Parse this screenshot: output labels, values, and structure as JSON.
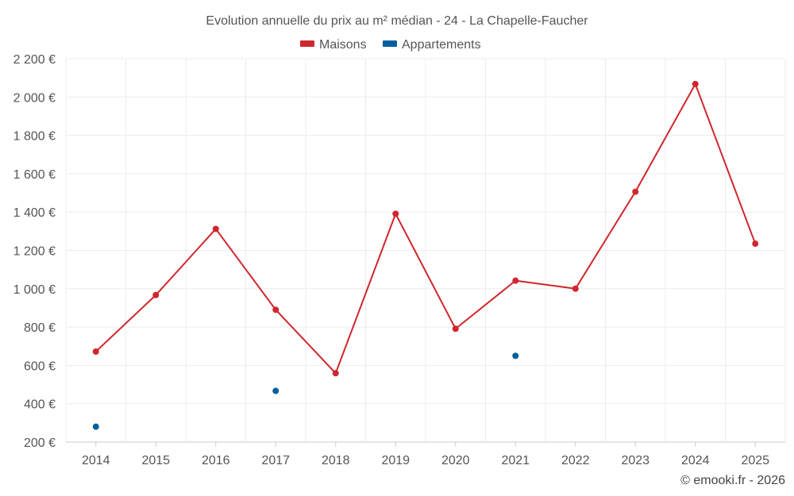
{
  "chart_data": {
    "type": "line",
    "title": "Evolution annuelle du prix au m² médian - 24 - La Chapelle-Faucher",
    "categories": [
      "2014",
      "2015",
      "2016",
      "2017",
      "2018",
      "2019",
      "2020",
      "2021",
      "2022",
      "2023",
      "2024",
      "2025"
    ],
    "series": [
      {
        "name": "Maisons",
        "color": "#d0262d",
        "mode": "line+markers",
        "values": [
          672,
          967,
          1312,
          890,
          559,
          1391,
          791,
          1042,
          1000,
          1506,
          2068,
          1235
        ]
      },
      {
        "name": "Appartements",
        "color": "#005f9e",
        "mode": "markers",
        "values": [
          280,
          null,
          null,
          467,
          null,
          null,
          null,
          650,
          null,
          null,
          null,
          null
        ]
      }
    ],
    "ylim": [
      200,
      2200
    ],
    "yticks": [
      200,
      400,
      600,
      800,
      1000,
      1200,
      1400,
      1600,
      1800,
      2000,
      2200
    ],
    "ytick_labels": [
      "200 €",
      "400 €",
      "600 €",
      "800 €",
      "1 000 €",
      "1 200 €",
      "1 400 €",
      "1 600 €",
      "1 800 €",
      "2 000 €",
      "2 200 €"
    ],
    "xlabel": "",
    "ylabel": "",
    "grid": true,
    "legend_position": "top-center"
  },
  "credit": "© emooki.fr - 2026"
}
